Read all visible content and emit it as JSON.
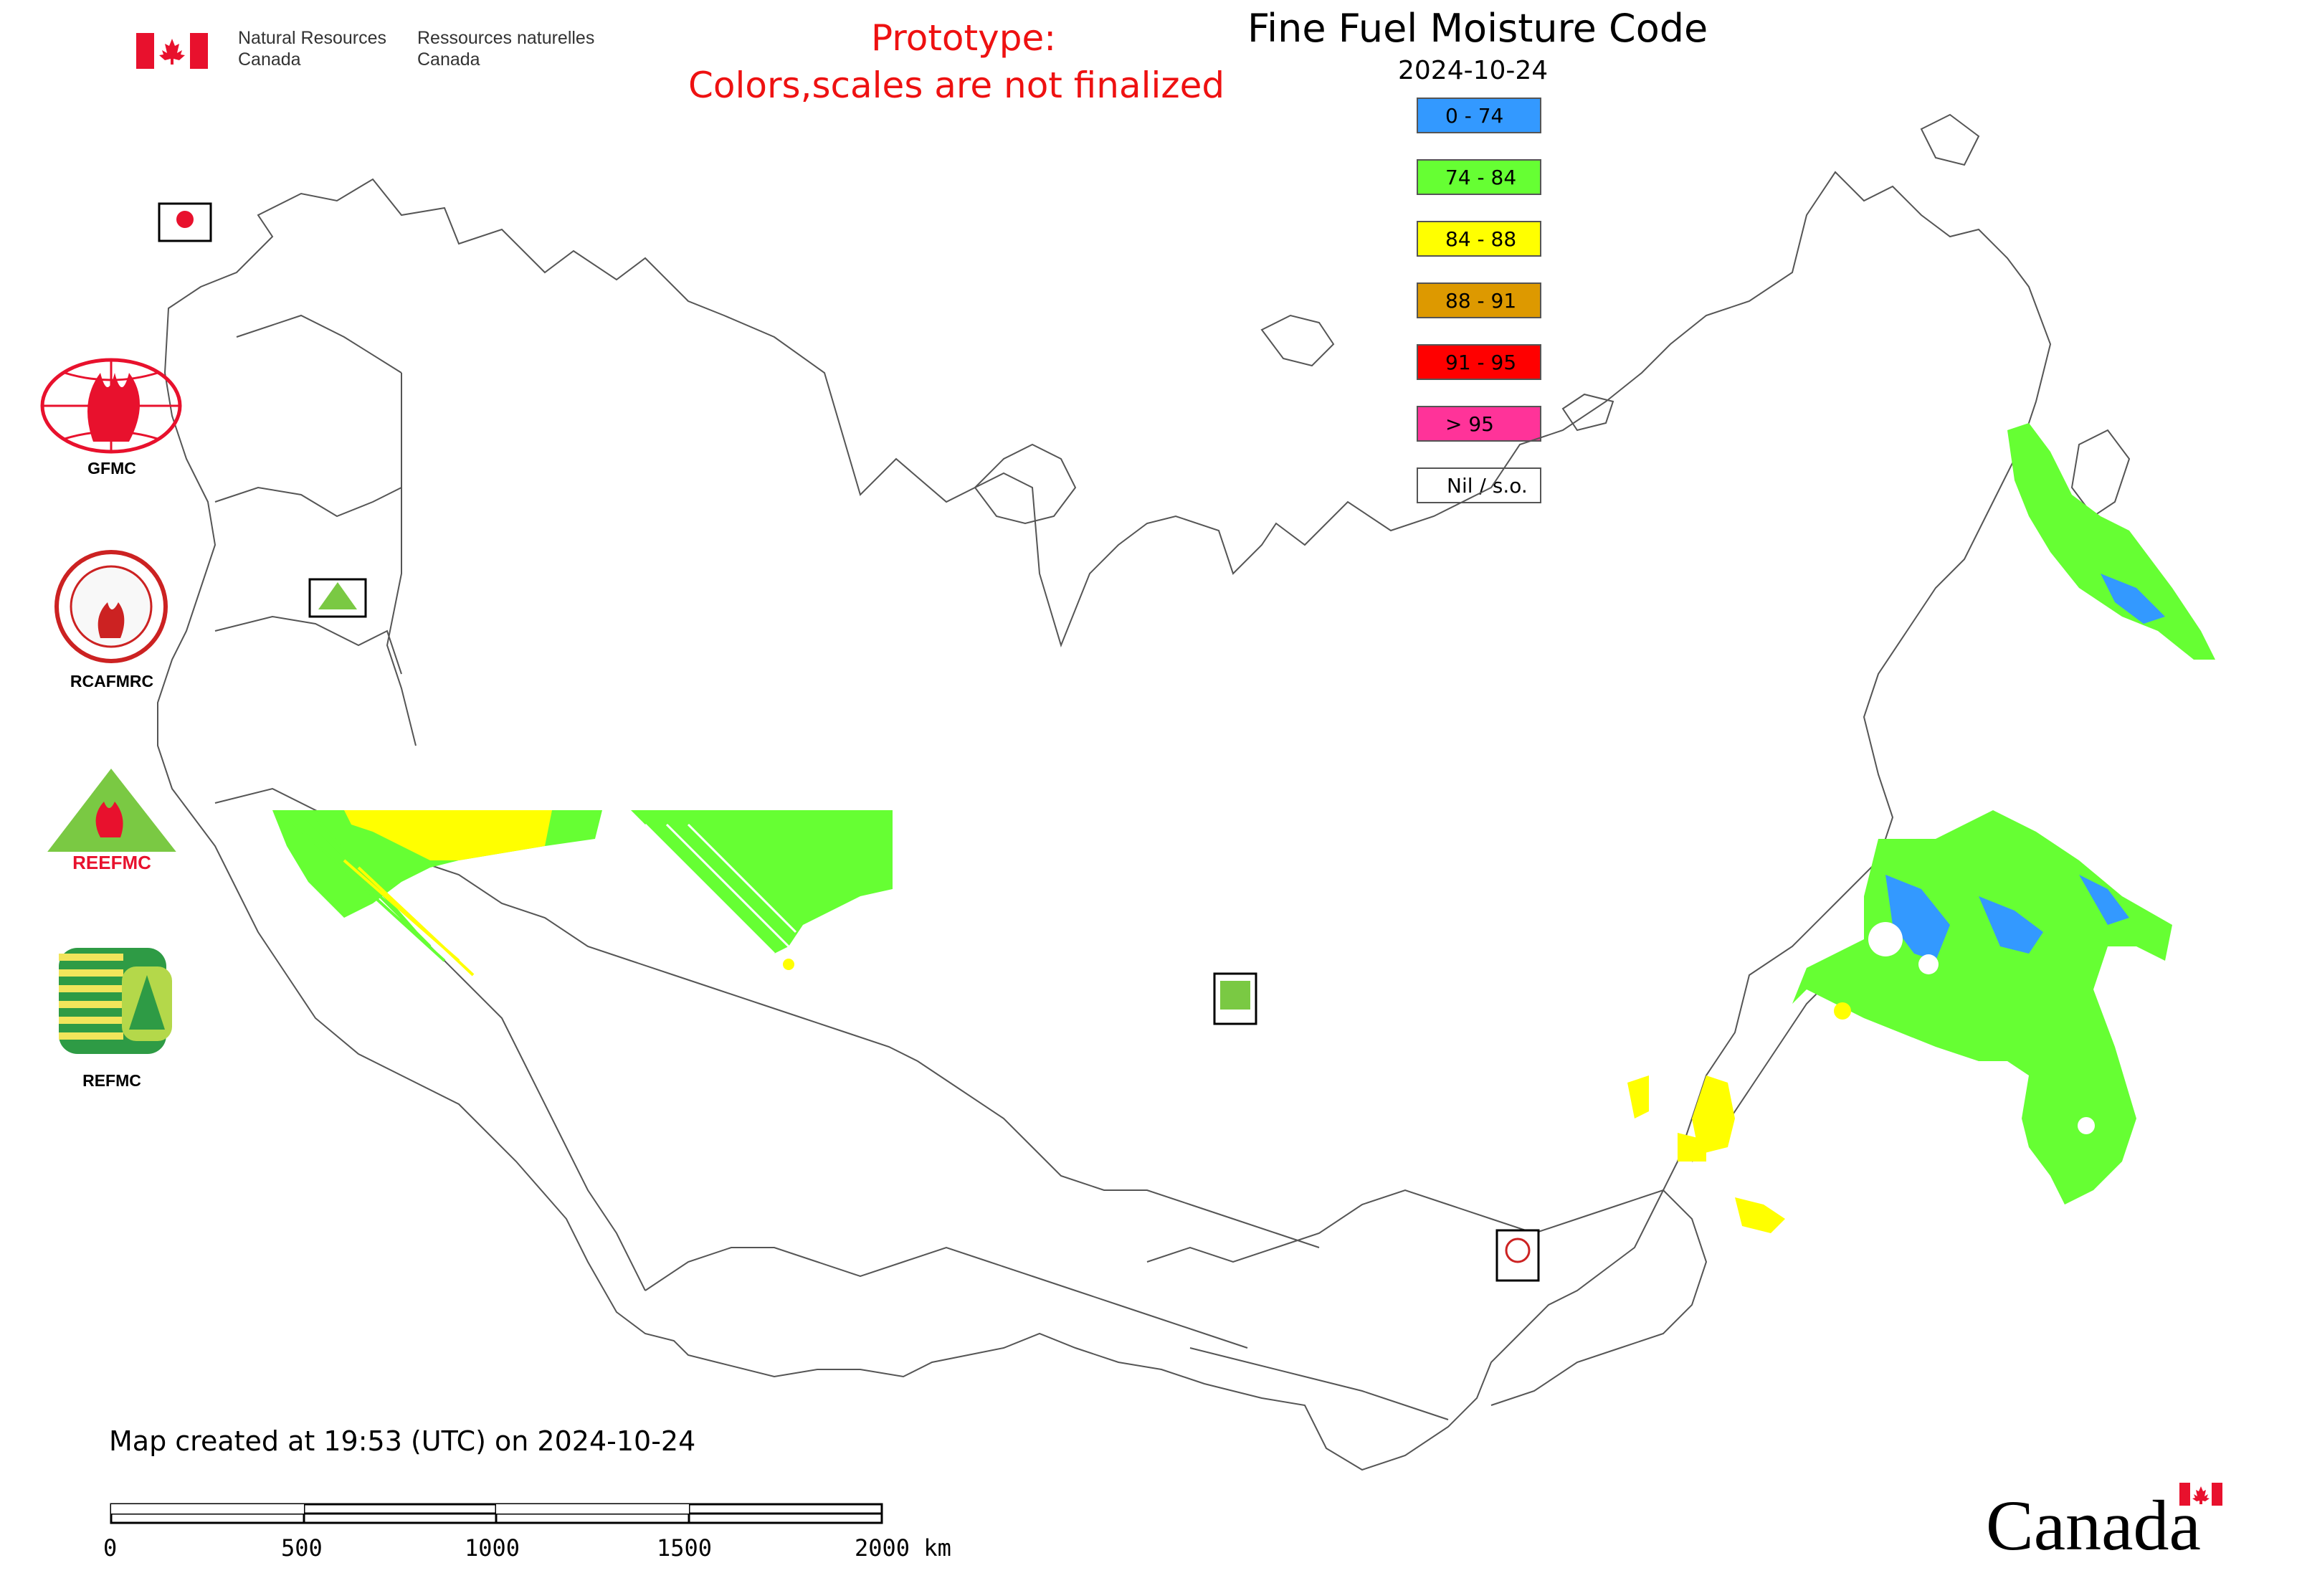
{
  "header": {
    "org_en_line1": "Natural Resources",
    "org_en_line2": "Canada",
    "org_fr_line1": "Ressources naturelles",
    "org_fr_line2": "Canada",
    "flag_icon": "canada-flag-icon"
  },
  "map": {
    "title": "Fine Fuel Moisture Code",
    "date": "2024-10-24",
    "prototype_line1": "Prototype:",
    "prototype_line2": "Colors,scales are not finalized",
    "created_text": "Map created at 19:53 (UTC) on 2024-10-24",
    "wordmark": "Canada"
  },
  "legend": [
    {
      "label": "0 - 74",
      "color": "#3399ff"
    },
    {
      "label": "74 - 84",
      "color": "#66ff33"
    },
    {
      "label": "84 - 88",
      "color": "#ffff00"
    },
    {
      "label": "88 - 91",
      "color": "#dd9900"
    },
    {
      "label": "91 - 95",
      "color": "#ff0000"
    },
    {
      "label": "> 95",
      "color": "#ff3399"
    },
    {
      "label": "Nil / s.o.",
      "color": "#ffffff"
    }
  ],
  "logos": [
    {
      "name": "GFMC",
      "icon": "gfmc-globe-flame-icon"
    },
    {
      "name": "RCAFMRC",
      "icon": "rcafmrc-seal-icon"
    },
    {
      "name": "REEFMC",
      "icon": "reefmc-triangle-icon"
    },
    {
      "name": "REFMC",
      "icon": "refmc-sigma-icon"
    }
  ],
  "scale_bar": {
    "ticks": [
      "0",
      "500",
      "1000",
      "1500",
      "2000 km"
    ]
  }
}
